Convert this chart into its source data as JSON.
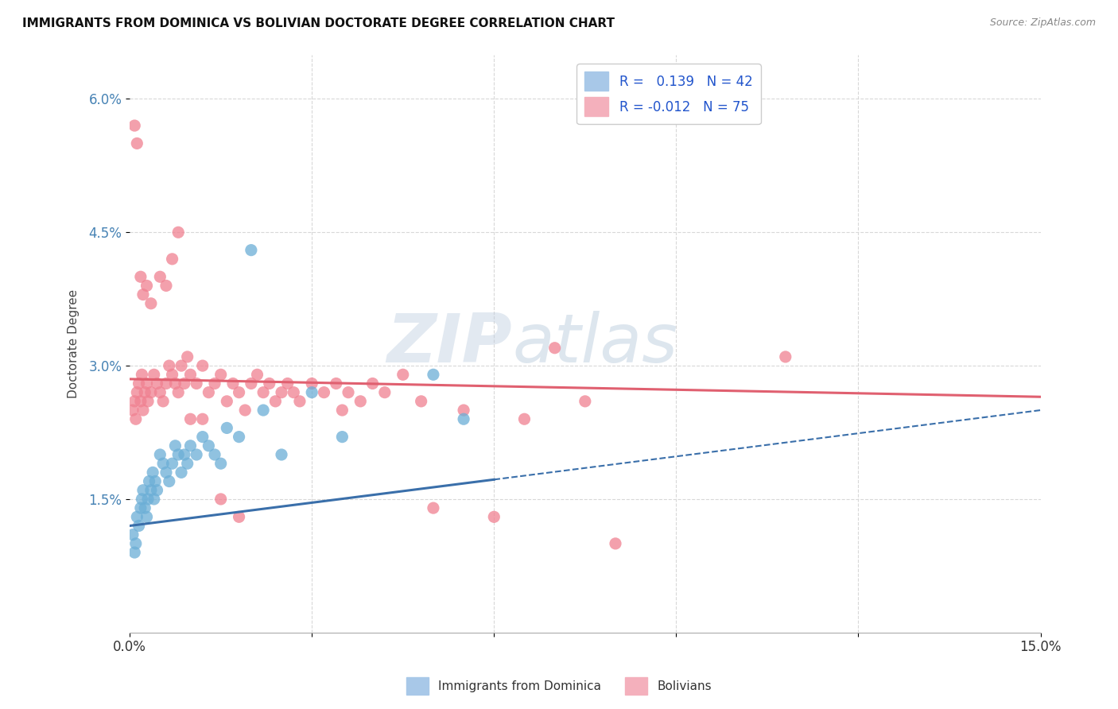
{
  "title": "IMMIGRANTS FROM DOMINICA VS BOLIVIAN DOCTORATE DEGREE CORRELATION CHART",
  "source": "Source: ZipAtlas.com",
  "ylabel": "Doctorate Degree",
  "xmin": 0.0,
  "xmax": 15.0,
  "ymin": 0.0,
  "ymax": 6.5,
  "dominica_color": "#6baed6",
  "bolivian_color": "#f08090",
  "dominica_line_color": "#3a6faa",
  "bolivian_line_color": "#e06070",
  "background_color": "#ffffff",
  "grid_color": "#d8d8d8",
  "dominica_scatter_x": [
    0.05,
    0.08,
    0.1,
    0.12,
    0.15,
    0.18,
    0.2,
    0.22,
    0.25,
    0.28,
    0.3,
    0.32,
    0.35,
    0.38,
    0.4,
    0.42,
    0.45,
    0.5,
    0.55,
    0.6,
    0.65,
    0.7,
    0.75,
    0.8,
    0.85,
    0.9,
    0.95,
    1.0,
    1.1,
    1.2,
    1.3,
    1.4,
    1.5,
    1.6,
    1.8,
    2.0,
    2.2,
    2.5,
    3.0,
    3.5,
    5.0,
    5.5
  ],
  "dominica_scatter_y": [
    1.1,
    0.9,
    1.0,
    1.3,
    1.2,
    1.4,
    1.5,
    1.6,
    1.4,
    1.3,
    1.5,
    1.7,
    1.6,
    1.8,
    1.5,
    1.7,
    1.6,
    2.0,
    1.9,
    1.8,
    1.7,
    1.9,
    2.1,
    2.0,
    1.8,
    2.0,
    1.9,
    2.1,
    2.0,
    2.2,
    2.1,
    2.0,
    1.9,
    2.3,
    2.2,
    4.3,
    2.5,
    2.0,
    2.7,
    2.2,
    2.9,
    2.4
  ],
  "bolivian_scatter_x": [
    0.05,
    0.08,
    0.1,
    0.12,
    0.15,
    0.18,
    0.2,
    0.22,
    0.25,
    0.28,
    0.3,
    0.35,
    0.4,
    0.45,
    0.5,
    0.55,
    0.6,
    0.65,
    0.7,
    0.75,
    0.8,
    0.85,
    0.9,
    0.95,
    1.0,
    1.1,
    1.2,
    1.3,
    1.4,
    1.5,
    1.6,
    1.7,
    1.8,
    1.9,
    2.0,
    2.1,
    2.2,
    2.3,
    2.4,
    2.5,
    2.6,
    2.7,
    2.8,
    3.0,
    3.2,
    3.4,
    3.5,
    3.6,
    3.8,
    4.0,
    4.2,
    4.5,
    4.8,
    5.0,
    5.5,
    6.0,
    6.5,
    7.0,
    7.5,
    8.0,
    0.08,
    0.12,
    0.18,
    0.22,
    0.28,
    0.35,
    0.5,
    0.6,
    0.7,
    0.8,
    1.0,
    1.2,
    1.5,
    1.8,
    10.8
  ],
  "bolivian_scatter_y": [
    2.5,
    2.6,
    2.4,
    2.7,
    2.8,
    2.6,
    2.9,
    2.5,
    2.7,
    2.8,
    2.6,
    2.7,
    2.9,
    2.8,
    2.7,
    2.6,
    2.8,
    3.0,
    2.9,
    2.8,
    2.7,
    3.0,
    2.8,
    3.1,
    2.9,
    2.8,
    3.0,
    2.7,
    2.8,
    2.9,
    2.6,
    2.8,
    2.7,
    2.5,
    2.8,
    2.9,
    2.7,
    2.8,
    2.6,
    2.7,
    2.8,
    2.7,
    2.6,
    2.8,
    2.7,
    2.8,
    2.5,
    2.7,
    2.6,
    2.8,
    2.7,
    2.9,
    2.6,
    1.4,
    2.5,
    1.3,
    2.4,
    3.2,
    2.6,
    1.0,
    5.7,
    5.5,
    4.0,
    3.8,
    3.9,
    3.7,
    4.0,
    3.9,
    4.2,
    4.5,
    2.4,
    2.4,
    1.5,
    1.3,
    3.1
  ],
  "dominica_line_start_y": 1.2,
  "dominica_line_end_y": 2.5,
  "bolivian_line_start_y": 2.85,
  "bolivian_line_end_y": 2.65
}
